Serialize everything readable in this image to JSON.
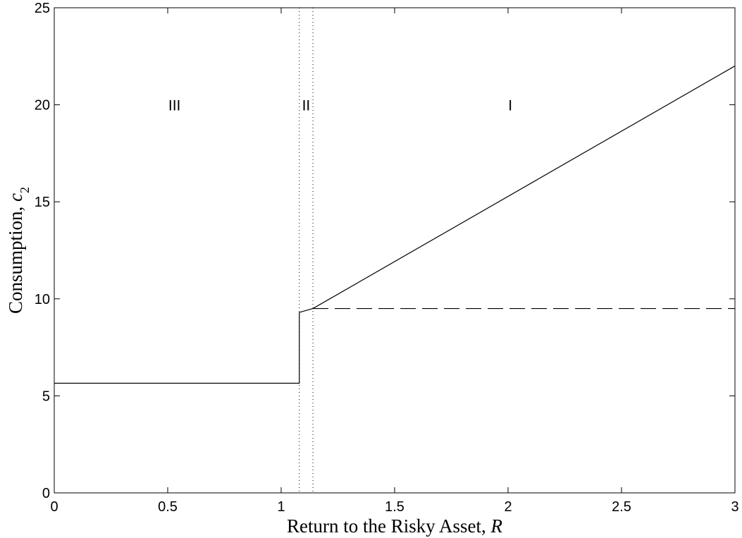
{
  "chart_data": {
    "type": "line",
    "title": "",
    "xlabel": "Return to the Risky Asset, R",
    "ylabel": "Consumption, c2",
    "xlim": [
      0,
      3
    ],
    "ylim": [
      0,
      25
    ],
    "xticks": [
      0,
      0.5,
      1,
      1.5,
      2,
      2.5,
      3
    ],
    "yticks": [
      0,
      5,
      10,
      15,
      20,
      25
    ],
    "xtick_labels": [
      "0",
      "0.5",
      "1",
      "1.5",
      "2",
      "2.5",
      "3"
    ],
    "ytick_labels": [
      "0",
      "5",
      "10",
      "15",
      "20",
      "25"
    ],
    "grid": false,
    "series": [
      {
        "style": "solid",
        "x": [
          0,
          1.08,
          1.08,
          1.14,
          3
        ],
        "y": [
          5.65,
          5.65,
          9.3,
          9.5,
          22.0
        ]
      },
      {
        "style": "dashed",
        "x": [
          1.14,
          3
        ],
        "y": [
          9.5,
          9.5
        ]
      }
    ],
    "vertical_lines": [
      {
        "x": 1.08,
        "style": "dotted"
      },
      {
        "x": 1.14,
        "style": "dotted"
      }
    ],
    "region_labels": [
      {
        "text": "III",
        "x": 0.53,
        "y": 20
      },
      {
        "text": "II",
        "x": 1.11,
        "y": 20
      },
      {
        "text": "I",
        "x": 2.01,
        "y": 20
      }
    ],
    "line_color": "#000000"
  }
}
